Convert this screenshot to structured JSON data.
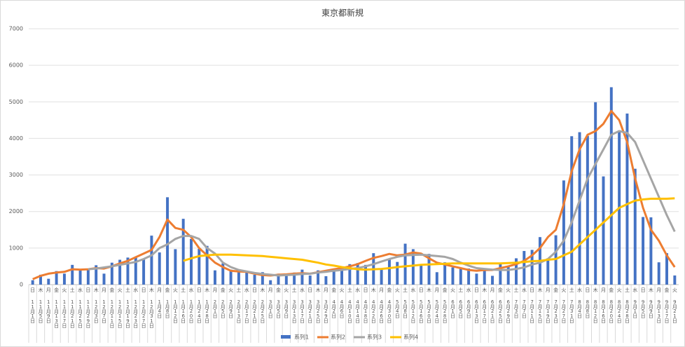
{
  "chart_data": {
    "type": "bar",
    "title": "東京都新規",
    "categories": [
      "11月1日",
      "11月5日",
      "11月9日",
      "11月13日",
      "11月17日",
      "11月21日",
      "11月25日",
      "11月29日",
      "12月3日",
      "12月7日",
      "12月11日",
      "12月15日",
      "12月19日",
      "12月23日",
      "12月27日",
      "12月31日",
      "1月4日",
      "1月8日",
      "1月12日",
      "1月16日",
      "1月20日",
      "1月24日",
      "1月28日",
      "2月1日",
      "2月5日",
      "2月9日",
      "2月13日",
      "2月17日",
      "2月21日",
      "2月25日",
      "3月1日",
      "3月5日",
      "3月9日",
      "3月13日",
      "3月17日",
      "3月21日",
      "3月25日",
      "3月29日",
      "4月2日",
      "4月6日",
      "4月10日",
      "4月14日",
      "4月18日",
      "4月22日",
      "4月26日",
      "4月30日",
      "5月4日",
      "5月8日",
      "5月12日",
      "5月16日",
      "5月20日",
      "5月24日",
      "5月28日",
      "6月1日",
      "6月5日",
      "6月9日",
      "6月13日",
      "6月17日",
      "6月21日",
      "6月25日",
      "6月29日",
      "7月3日",
      "7月7日",
      "7月11日",
      "7月15日",
      "7月19日",
      "7月23日",
      "7月27日",
      "7月31日",
      "8月4日",
      "8月8日",
      "8月12日",
      "8月16日",
      "8月20日",
      "8月24日",
      "8月28日",
      "9月1日",
      "9月5日",
      "9月9日",
      "9月13日",
      "9月17日",
      "9月21日"
    ],
    "weekdays": [
      "日",
      "木",
      "月",
      "金",
      "火",
      "土",
      "水",
      "日",
      "木",
      "月",
      "金",
      "火",
      "土",
      "水",
      "日",
      "木",
      "月",
      "金",
      "火",
      "土",
      "水",
      "日",
      "木",
      "月",
      "金",
      "火",
      "土",
      "水",
      "日",
      "木",
      "月",
      "金",
      "火",
      "土",
      "水",
      "日",
      "木",
      "月",
      "金",
      "火",
      "土",
      "水",
      "日",
      "木",
      "月",
      "金",
      "火",
      "土",
      "水",
      "日",
      "木",
      "月",
      "金",
      "火",
      "土",
      "水",
      "日",
      "木",
      "月",
      "金",
      "火",
      "土",
      "水",
      "日",
      "木",
      "月",
      "金",
      "火",
      "土",
      "水",
      "日",
      "木",
      "月",
      "金",
      "火",
      "土",
      "水",
      "日",
      "木",
      "月",
      "金",
      "火"
    ],
    "series": [
      {
        "name": "系列1",
        "type": "bar",
        "color": "#4472c4",
        "values": [
          120,
          270,
          160,
          370,
          300,
          540,
          400,
          420,
          530,
          300,
          600,
          680,
          740,
          750,
          700,
          1340,
          880,
          2390,
          970,
          1800,
          1250,
          980,
          1060,
          390,
          580,
          410,
          370,
          380,
          270,
          340,
          120,
          300,
          290,
          330,
          410,
          250,
          390,
          230,
          440,
          400,
          560,
          590,
          540,
          860,
          420,
          700,
          620,
          1120,
          970,
          540,
          840,
          340,
          610,
          470,
          430,
          440,
          300,
          450,
          240,
          570,
          480,
          720,
          920,
          950,
          1300,
          720,
          1350,
          2850,
          4060,
          4170,
          4070,
          4990,
          2960,
          5400,
          4220,
          4680,
          3170,
          1850,
          1840,
          610,
          860,
          250
        ]
      },
      {
        "name": "系列2",
        "type": "line",
        "color": "#ed7d31",
        "values": [
          150,
          240,
          300,
          330,
          350,
          420,
          410,
          420,
          450,
          440,
          500,
          580,
          650,
          750,
          850,
          950,
          1300,
          1780,
          1550,
          1500,
          1300,
          1000,
          800,
          600,
          480,
          380,
          360,
          350,
          300,
          260,
          250,
          270,
          280,
          300,
          310,
          300,
          340,
          380,
          420,
          450,
          500,
          560,
          650,
          730,
          780,
          840,
          800,
          820,
          880,
          850,
          720,
          600,
          550,
          500,
          450,
          400,
          380,
          400,
          400,
          450,
          500,
          560,
          650,
          800,
          1000,
          1300,
          1500,
          2200,
          3100,
          3700,
          4100,
          4200,
          4400,
          4750,
          4500,
          3900,
          2900,
          2100,
          1500,
          1200,
          800,
          480
        ]
      },
      {
        "name": "系列3",
        "type": "line",
        "color": "#a5a5a5",
        "values": [
          null,
          null,
          null,
          null,
          null,
          null,
          null,
          420,
          440,
          470,
          500,
          540,
          580,
          620,
          700,
          800,
          1000,
          1100,
          1250,
          1330,
          1330,
          1250,
          1000,
          850,
          600,
          480,
          400,
          360,
          320,
          290,
          270,
          250,
          260,
          270,
          290,
          300,
          330,
          350,
          380,
          400,
          430,
          450,
          500,
          560,
          630,
          700,
          760,
          800,
          810,
          820,
          800,
          780,
          760,
          700,
          600,
          520,
          450,
          430,
          410,
          400,
          400,
          430,
          470,
          550,
          600,
          700,
          900,
          1200,
          1700,
          2300,
          2900,
          3300,
          3700,
          4100,
          4200,
          4150,
          3900,
          3400,
          2900,
          2400,
          1900,
          1450
        ]
      },
      {
        "name": "系列4",
        "type": "line",
        "color": "#ffc000",
        "values": [
          null,
          null,
          null,
          null,
          null,
          null,
          null,
          null,
          null,
          null,
          null,
          null,
          null,
          null,
          null,
          null,
          null,
          null,
          null,
          650,
          720,
          780,
          800,
          820,
          820,
          820,
          810,
          800,
          790,
          780,
          760,
          740,
          720,
          700,
          680,
          640,
          600,
          550,
          520,
          480,
          450,
          420,
          410,
          420,
          430,
          450,
          480,
          500,
          520,
          540,
          550,
          560,
          570,
          580,
          580,
          580,
          580,
          580,
          580,
          580,
          590,
          600,
          620,
          640,
          650,
          680,
          700,
          800,
          900,
          1100,
          1300,
          1500,
          1700,
          1900,
          2100,
          2200,
          2300,
          2330,
          2350,
          2350,
          2350,
          2360
        ]
      }
    ],
    "ylim": [
      0,
      7000
    ],
    "yticks": [
      0,
      1000,
      2000,
      3000,
      4000,
      5000,
      6000,
      7000
    ],
    "grid": true,
    "legend": "bottom"
  }
}
